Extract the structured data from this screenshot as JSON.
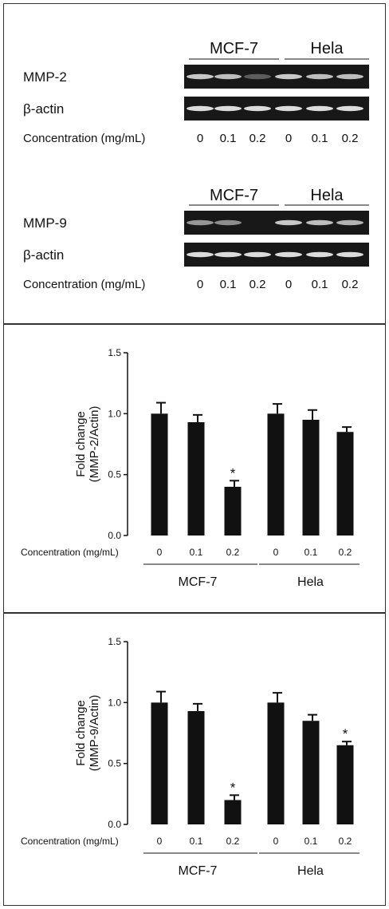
{
  "colors": {
    "bar": "#111111",
    "gel_bg": "#181818",
    "band": "#dcdcdc",
    "frame": "#333333"
  },
  "gels": {
    "blocks": [
      {
        "group_labels": [
          "MCF-7",
          "Hela"
        ],
        "rows": [
          {
            "label": "MMP-2",
            "intensities": [
              0.9,
              0.85,
              0.35,
              0.9,
              0.85,
              0.85
            ]
          },
          {
            "label": "β-actin",
            "intensities": [
              1,
              1,
              1,
              1,
              1,
              1
            ]
          }
        ],
        "concentration_label": "Concentration  (mg/mL)",
        "lanes": [
          "0",
          "0.1",
          "0.2",
          "0",
          "0.1",
          "0.2"
        ]
      },
      {
        "group_labels": [
          "MCF-7",
          "Hela"
        ],
        "rows": [
          {
            "label": "MMP-9",
            "intensities": [
              0.65,
              0.6,
              0.0,
              0.9,
              0.85,
              0.8
            ]
          },
          {
            "label": "β-actin",
            "intensities": [
              1,
              1,
              1,
              1,
              1,
              1
            ]
          }
        ],
        "concentration_label": "Concentration  (mg/mL)",
        "lanes": [
          "0",
          "0.1",
          "0.2",
          "0",
          "0.1",
          "0.2"
        ]
      }
    ]
  },
  "chart_data": [
    {
      "type": "bar",
      "ylabel": "Fold change\n(MMP-2/Actin)",
      "ylim": [
        0,
        1.5
      ],
      "yticks": [
        "0.0",
        "0.5",
        "1.0",
        "1.5"
      ],
      "concentration_label": "Concentration (mg/mL)",
      "categories": [
        "0",
        "0.1",
        "0.2",
        "0",
        "0.1",
        "0.2"
      ],
      "groups": [
        "MCF-7",
        "Hela"
      ],
      "values": [
        1.0,
        0.93,
        0.4,
        1.0,
        0.95,
        0.85
      ],
      "errors": [
        0.09,
        0.06,
        0.05,
        0.08,
        0.08,
        0.04
      ],
      "significance": [
        "",
        "",
        "*",
        "",
        "",
        ""
      ]
    },
    {
      "type": "bar",
      "ylabel": "Fold change\n(MMP-9/Actin)",
      "ylim": [
        0,
        1.5
      ],
      "yticks": [
        "0.0",
        "0.5",
        "1.0",
        "1.5"
      ],
      "concentration_label": "Concentration (mg/mL)",
      "categories": [
        "0",
        "0.1",
        "0.2",
        "0",
        "0.1",
        "0.2"
      ],
      "groups": [
        "MCF-7",
        "Hela"
      ],
      "values": [
        1.0,
        0.93,
        0.2,
        1.0,
        0.85,
        0.65
      ],
      "errors": [
        0.09,
        0.06,
        0.04,
        0.08,
        0.05,
        0.03
      ],
      "significance": [
        "",
        "",
        "*",
        "",
        "",
        "*"
      ]
    }
  ]
}
